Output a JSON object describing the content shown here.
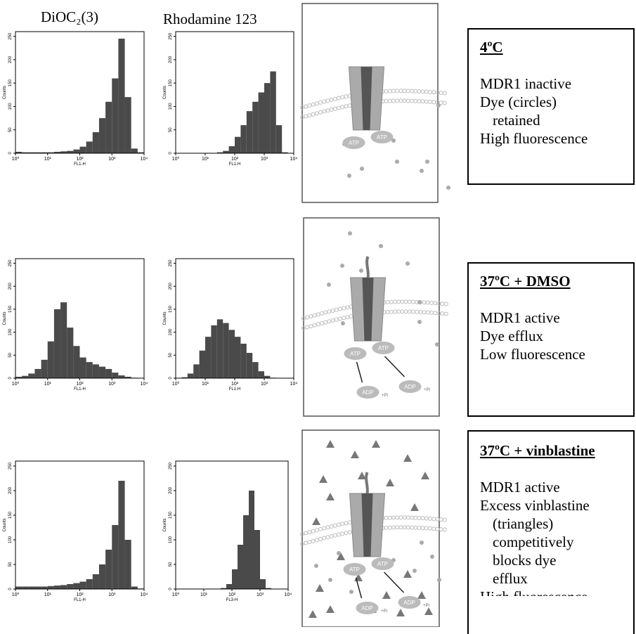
{
  "headers": [
    "DiOC₂(3)",
    "Rhodamine 123"
  ],
  "chart_data": [
    {
      "type": "histogram",
      "xlabel": "FL1-H",
      "ylabel": "Counts",
      "log_x": true,
      "color": "#4a4a4a",
      "bins": [
        1,
        1.585,
        2.512,
        3.981,
        6.31,
        10,
        15.85,
        25.12,
        39.81,
        63.1,
        100,
        158.5,
        251.2,
        398.1,
        631,
        1000,
        1585,
        2512,
        3981,
        6310,
        10000
      ],
      "counts": [
        3,
        2,
        2,
        2,
        2,
        2,
        3,
        4,
        5,
        8,
        14,
        25,
        45,
        75,
        110,
        160,
        245,
        120,
        10,
        2
      ],
      "xlim": [
        1,
        10000
      ],
      "ylim": [
        0,
        260
      ],
      "xticks": [
        {
          "value": 1,
          "label": "10⁰"
        },
        {
          "value": 10,
          "label": "10¹"
        },
        {
          "value": 100,
          "label": "10²"
        },
        {
          "value": 1000,
          "label": "10³"
        },
        {
          "value": 10000,
          "label": "10⁴"
        }
      ],
      "yticks": [
        0,
        50,
        100,
        150,
        200,
        250
      ]
    },
    {
      "type": "histogram",
      "xlabel": "FL1-H",
      "ylabel": "Counts",
      "log_x": true,
      "color": "#4a4a4a",
      "bins": [
        1,
        1.585,
        2.512,
        3.981,
        6.31,
        10,
        15.85,
        25.12,
        39.81,
        63.1,
        100,
        158.5,
        251.2,
        398.1,
        631,
        1000,
        1585,
        2512,
        3981,
        6310,
        10000
      ],
      "counts": [
        0,
        0,
        0,
        0,
        0,
        0,
        0,
        2,
        5,
        15,
        35,
        60,
        90,
        110,
        130,
        150,
        175,
        60,
        2,
        0
      ],
      "xlim": [
        1,
        10000
      ],
      "ylim": [
        0,
        260
      ],
      "xticks": [
        {
          "value": 1,
          "label": "10⁰"
        },
        {
          "value": 10,
          "label": "10¹"
        },
        {
          "value": 100,
          "label": "10²"
        },
        {
          "value": 1000,
          "label": "10³"
        },
        {
          "value": 10000,
          "label": "10⁴"
        }
      ],
      "yticks": [
        0,
        50,
        100,
        150,
        200,
        250
      ]
    },
    {
      "type": "histogram",
      "xlabel": "FL1-H",
      "ylabel": "Counts",
      "log_x": true,
      "color": "#4a4a4a",
      "bins": [
        1,
        1.585,
        2.512,
        3.981,
        6.31,
        10,
        15.85,
        25.12,
        39.81,
        63.1,
        100,
        158.5,
        251.2,
        398.1,
        631,
        1000,
        1585,
        2512,
        3981,
        6310,
        10000
      ],
      "counts": [
        3,
        5,
        10,
        20,
        40,
        80,
        150,
        165,
        110,
        70,
        45,
        35,
        30,
        25,
        20,
        12,
        6,
        3,
        1,
        0
      ],
      "xlim": [
        1,
        10000
      ],
      "ylim": [
        0,
        260
      ],
      "xticks": [
        {
          "value": 1,
          "label": "10⁰"
        },
        {
          "value": 10,
          "label": "10¹"
        },
        {
          "value": 100,
          "label": "10²"
        },
        {
          "value": 1000,
          "label": "10³"
        },
        {
          "value": 10000,
          "label": "10⁴"
        }
      ],
      "yticks": [
        0,
        50,
        100,
        150,
        200,
        250
      ]
    },
    {
      "type": "histogram",
      "xlabel": "FL1-H",
      "ylabel": "Counts",
      "log_x": true,
      "color": "#4a4a4a",
      "bins": [
        1,
        1.585,
        2.512,
        3.981,
        6.31,
        10,
        15.85,
        25.12,
        39.81,
        63.1,
        100,
        158.5,
        251.2,
        398.1,
        631,
        1000,
        1585,
        2512,
        3981,
        6310,
        10000
      ],
      "counts": [
        0,
        2,
        10,
        30,
        60,
        90,
        115,
        128,
        120,
        105,
        90,
        75,
        55,
        35,
        15,
        5,
        1,
        0,
        0,
        0
      ],
      "xlim": [
        1,
        10000
      ],
      "ylim": [
        0,
        260
      ],
      "xticks": [
        {
          "value": 1,
          "label": "10⁰"
        },
        {
          "value": 10,
          "label": "10¹"
        },
        {
          "value": 100,
          "label": "10²"
        },
        {
          "value": 1000,
          "label": "10³"
        },
        {
          "value": 10000,
          "label": "10⁴"
        }
      ],
      "yticks": [
        0,
        50,
        100,
        150,
        200,
        250
      ]
    },
    {
      "type": "histogram",
      "xlabel": "FL1-H",
      "ylabel": "Counts",
      "log_x": true,
      "color": "#4a4a4a",
      "bins": [
        1,
        1.585,
        2.512,
        3.981,
        6.31,
        10,
        15.85,
        25.12,
        39.81,
        63.1,
        100,
        158.5,
        251.2,
        398.1,
        631,
        1000,
        1585,
        2512,
        3981,
        6310,
        10000
      ],
      "counts": [
        5,
        5,
        5,
        5,
        5,
        6,
        7,
        8,
        10,
        12,
        15,
        20,
        30,
        50,
        80,
        130,
        220,
        100,
        5,
        1
      ],
      "xlim": [
        1,
        10000
      ],
      "ylim": [
        0,
        260
      ],
      "xticks": [
        {
          "value": 1,
          "label": "10⁰"
        },
        {
          "value": 10,
          "label": "10¹"
        },
        {
          "value": 100,
          "label": "10²"
        },
        {
          "value": 1000,
          "label": "10³"
        },
        {
          "value": 10000,
          "label": "10⁴"
        }
      ],
      "yticks": [
        0,
        50,
        100,
        150,
        200,
        250
      ]
    },
    {
      "type": "histogram",
      "xlabel": "FL3-H",
      "ylabel": "Counts",
      "log_x": true,
      "color": "#4a4a4a",
      "bins": [
        1,
        1.585,
        2.512,
        3.981,
        6.31,
        10,
        15.85,
        25.12,
        39.81,
        63.1,
        100,
        158.5,
        251.2,
        398.1,
        631,
        1000,
        1585,
        2512,
        3981,
        6310,
        10000
      ],
      "counts": [
        0,
        0,
        0,
        0,
        0,
        0,
        0,
        0,
        2,
        10,
        40,
        90,
        150,
        200,
        120,
        20,
        2,
        0,
        0,
        0
      ],
      "xlim": [
        1,
        10000
      ],
      "ylim": [
        0,
        260
      ],
      "xticks": [
        {
          "value": 1,
          "label": "10⁰"
        },
        {
          "value": 10,
          "label": "10¹"
        },
        {
          "value": 100,
          "label": "10²"
        },
        {
          "value": 1000,
          "label": "10³"
        },
        {
          "value": 10000,
          "label": "10⁴"
        }
      ],
      "yticks": [
        0,
        50,
        100,
        150,
        200,
        250
      ]
    }
  ],
  "diagram_labels": {
    "atp": "ATP",
    "adp": "ADP",
    "pi": "+Pi"
  },
  "conditions": [
    {
      "title": "4ºC",
      "lines": [
        "MDR1 inactive",
        "Dye (circles)",
        "retained",
        "High fluorescence"
      ]
    },
    {
      "title": "37ºC + DMSO",
      "lines": [
        "MDR1 active",
        "Dye efflux",
        "Low fluorescence"
      ]
    },
    {
      "title": "37ºC + vinblastine",
      "lines": [
        "MDR1 active",
        "Excess vinblastine",
        "(triangles)",
        "competitively",
        "blocks dye",
        "efflux",
        "High fluorescence"
      ]
    }
  ]
}
